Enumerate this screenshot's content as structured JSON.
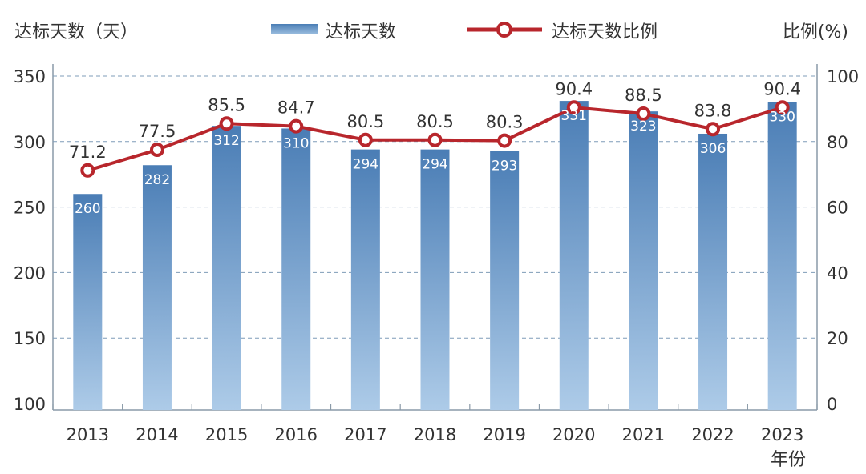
{
  "chart_data": {
    "type": "bar+line",
    "left_axis_title": "达标天数（天）",
    "right_axis_title": "比例(%)",
    "x_axis_title": "年份",
    "legend": {
      "bar_label": "达标天数",
      "line_label": "达标天数比例",
      "placement": "top"
    },
    "categories": [
      "2013",
      "2014",
      "2015",
      "2016",
      "2017",
      "2018",
      "2019",
      "2020",
      "2021",
      "2022",
      "2023"
    ],
    "series": [
      {
        "name": "达标天数",
        "type": "bar",
        "axis": "left",
        "values": [
          260,
          282,
          312,
          310,
          294,
          294,
          293,
          331,
          323,
          306,
          330
        ]
      },
      {
        "name": "达标天数比例",
        "type": "line",
        "axis": "right",
        "values": [
          71.2,
          77.5,
          85.5,
          84.7,
          80.5,
          80.5,
          80.3,
          90.4,
          88.5,
          83.8,
          90.4
        ]
      }
    ],
    "left_ticks": [
      "100",
      "150",
      "200",
      "250",
      "300",
      "350"
    ],
    "right_ticks": [
      "0",
      "20",
      "40",
      "60",
      "80",
      "100"
    ],
    "left_range": [
      100,
      350
    ],
    "right_range": [
      0,
      100
    ],
    "grid": "dashed horizontal",
    "colors": {
      "bar_top": "#4a7db5",
      "bar_bottom": "#a9c8e6",
      "line": "#b8262c",
      "grid": "#7f9cb8",
      "axis": "#8a9aa8",
      "text": "#333333"
    }
  }
}
